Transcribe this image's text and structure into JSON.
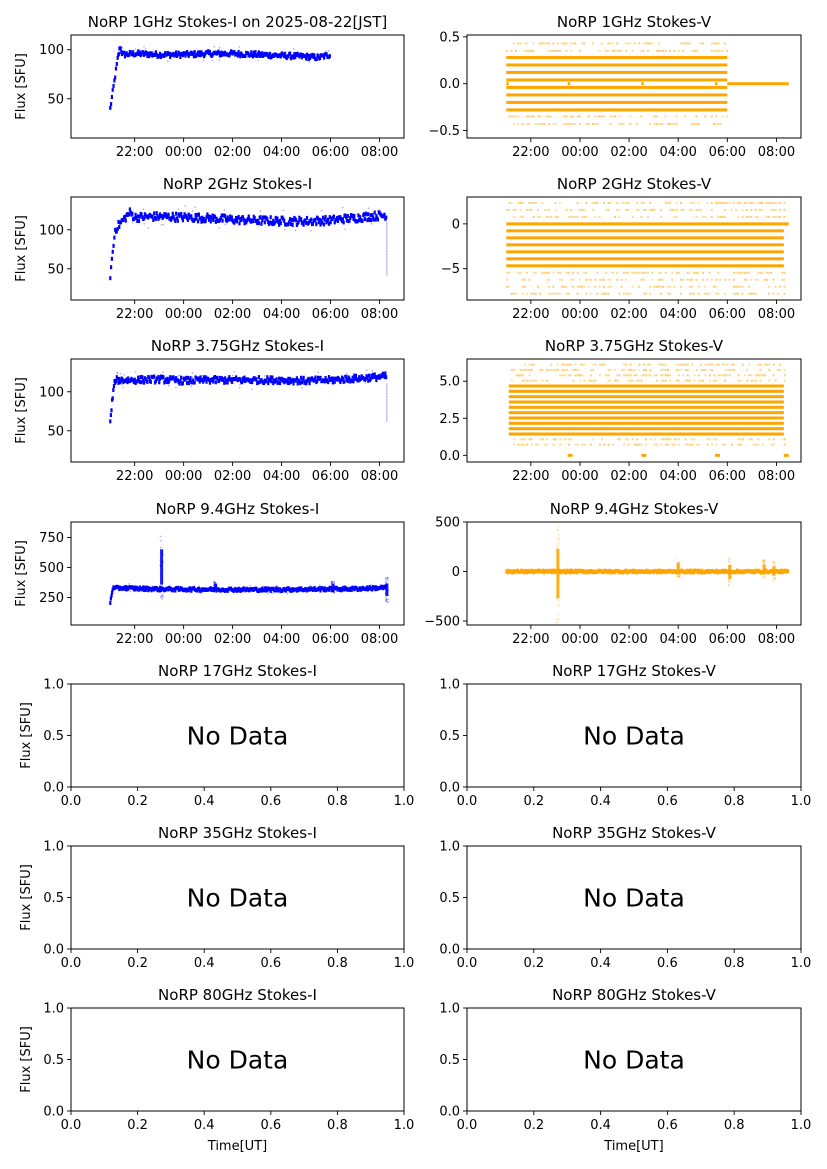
{
  "figure": {
    "ylabel": "Flux [SFU]",
    "xlabel": "Time[UT]",
    "no_data_text": "No Data",
    "colors": {
      "stokes_i": "#0000ff",
      "stokes_v": "#ffa500",
      "axes": "#000000"
    }
  },
  "chart_data": [
    {
      "id": "1ghz-i",
      "type": "scatter",
      "title": "NoRP 1GHz Stokes-I on 2025-08-22[JST]",
      "ylabel": "Flux [SFU]",
      "xlabel": "",
      "has_data": true,
      "color": "#0000ff",
      "xlim_hours": [
        19.4,
        33.0
      ],
      "ylim": [
        10,
        115
      ],
      "xticks": [
        {
          "v": 22,
          "label": "22:00"
        },
        {
          "v": 24,
          "label": "00:00"
        },
        {
          "v": 26,
          "label": "02:00"
        },
        {
          "v": 28,
          "label": "04:00"
        },
        {
          "v": 30,
          "label": "06:00"
        },
        {
          "v": 32,
          "label": "08:00"
        }
      ],
      "yticks": [
        {
          "v": 50,
          "label": "50"
        },
        {
          "v": 100,
          "label": "100"
        }
      ],
      "series": [
        {
          "name": "Stokes-I",
          "x": [
            21.0,
            21.3,
            21.4,
            21.5,
            22,
            23,
            24,
            25,
            26,
            27,
            28,
            29,
            29.5,
            30.0
          ],
          "y": [
            40,
            90,
            103,
            95,
            96,
            95,
            95,
            96,
            96,
            95,
            94,
            93,
            92,
            95
          ],
          "spread": 2.5
        }
      ]
    },
    {
      "id": "1ghz-v",
      "type": "scatter",
      "title": "NoRP 1GHz Stokes-V",
      "ylabel": "",
      "xlabel": "",
      "has_data": true,
      "color": "#ffa500",
      "xlim_hours": [
        19.4,
        33.0
      ],
      "ylim": [
        -0.58,
        0.52
      ],
      "xticks": [
        {
          "v": 22,
          "label": "22:00"
        },
        {
          "v": 24,
          "label": "00:00"
        },
        {
          "v": 26,
          "label": "02:00"
        },
        {
          "v": 28,
          "label": "04:00"
        },
        {
          "v": 30,
          "label": "06:00"
        },
        {
          "v": 32,
          "label": "08:00"
        }
      ],
      "yticks": [
        {
          "v": -0.5,
          "label": "−0.5"
        },
        {
          "v": 0,
          "label": "0.0"
        },
        {
          "v": 0.5,
          "label": "0.5"
        }
      ],
      "quantized_bands": {
        "x_range": [
          21.0,
          30.0
        ],
        "step": 0.078,
        "solid_levels": [
          -0.28,
          -0.2,
          -0.12,
          -0.04,
          0.04,
          0.12,
          0.2,
          0.28
        ],
        "sparse_levels": [
          -0.43,
          -0.35,
          0.35,
          0.43
        ]
      },
      "segments": [
        {
          "x": [
            30.0,
            32.5
          ],
          "y": 0.0
        },
        {
          "x": [
            21.0,
            21.1
          ],
          "y": 0.0
        },
        {
          "x": [
            23.5,
            23.6
          ],
          "y": 0.0
        },
        {
          "x": [
            26.5,
            26.6
          ],
          "y": 0.0
        },
        {
          "x": [
            29.5,
            29.6
          ],
          "y": 0.0
        }
      ]
    },
    {
      "id": "2ghz-i",
      "type": "scatter",
      "title": "NoRP 2GHz Stokes-I",
      "ylabel": "Flux [SFU]",
      "xlabel": "",
      "has_data": true,
      "color": "#0000ff",
      "xlim_hours": [
        19.4,
        33.0
      ],
      "ylim": [
        10,
        142
      ],
      "xticks": [
        {
          "v": 22,
          "label": "22:00"
        },
        {
          "v": 24,
          "label": "00:00"
        },
        {
          "v": 26,
          "label": "02:00"
        },
        {
          "v": 28,
          "label": "04:00"
        },
        {
          "v": 30,
          "label": "06:00"
        },
        {
          "v": 32,
          "label": "08:00"
        }
      ],
      "yticks": [
        {
          "v": 50,
          "label": "50"
        },
        {
          "v": 100,
          "label": "100"
        }
      ],
      "series": [
        {
          "name": "Stokes-I",
          "x": [
            21.0,
            21.2,
            21.4,
            21.8,
            22,
            23,
            24,
            25,
            26,
            27,
            28,
            29,
            30,
            30.5,
            31,
            31.5,
            32,
            32.3
          ],
          "y": [
            42,
            100,
            108,
            122,
            116,
            117,
            116,
            115,
            113,
            112,
            111,
            111,
            112,
            114,
            115,
            117,
            118,
            119
          ],
          "spread": 5
        }
      ],
      "dropout": {
        "x": 32.3,
        "y_min": 42
      }
    },
    {
      "id": "2ghz-v",
      "type": "scatter",
      "title": "NoRP 2GHz Stokes-V",
      "ylabel": "",
      "xlabel": "",
      "has_data": true,
      "color": "#ffa500",
      "xlim_hours": [
        19.4,
        33.0
      ],
      "ylim": [
        -8.5,
        3.0
      ],
      "xticks": [
        {
          "v": 22,
          "label": "22:00"
        },
        {
          "v": 24,
          "label": "00:00"
        },
        {
          "v": 26,
          "label": "02:00"
        },
        {
          "v": 28,
          "label": "04:00"
        },
        {
          "v": 30,
          "label": "06:00"
        },
        {
          "v": 32,
          "label": "08:00"
        }
      ],
      "yticks": [
        {
          "v": -5,
          "label": "−5"
        },
        {
          "v": 0,
          "label": "0"
        }
      ],
      "quantized_bands": {
        "x_range": [
          21.0,
          32.3
        ],
        "step": 0.78,
        "solid_levels": [
          0.0,
          -0.78,
          -1.56,
          -2.34,
          -3.12,
          -3.9,
          -4.68
        ],
        "sparse_levels": [
          2.34,
          1.56,
          0.78,
          -5.46,
          -6.24,
          -7.02,
          -7.8
        ]
      },
      "segments": [
        {
          "x": [
            32.3,
            32.5
          ],
          "y": 0.0
        }
      ]
    },
    {
      "id": "375ghz-i",
      "type": "scatter",
      "title": "NoRP 3.75GHz Stokes-I",
      "ylabel": "Flux [SFU]",
      "xlabel": "",
      "has_data": true,
      "color": "#0000ff",
      "xlim_hours": [
        19.4,
        33.0
      ],
      "ylim": [
        10,
        142
      ],
      "xticks": [
        {
          "v": 22,
          "label": "22:00"
        },
        {
          "v": 24,
          "label": "00:00"
        },
        {
          "v": 26,
          "label": "02:00"
        },
        {
          "v": 28,
          "label": "04:00"
        },
        {
          "v": 30,
          "label": "06:00"
        },
        {
          "v": 32,
          "label": "08:00"
        }
      ],
      "yticks": [
        {
          "v": 50,
          "label": "50"
        },
        {
          "v": 100,
          "label": "100"
        }
      ],
      "series": [
        {
          "name": "Stokes-I",
          "x": [
            21.0,
            21.1,
            21.2,
            22,
            23,
            24,
            25,
            26,
            27,
            28,
            29,
            30,
            30.5,
            31,
            31.5,
            32,
            32.3
          ],
          "y": [
            60,
            95,
            115,
            115,
            116,
            114,
            115,
            115,
            115,
            115,
            114,
            115,
            116,
            117,
            118,
            119,
            120
          ],
          "spread": 4
        }
      ],
      "dropout": {
        "x": 32.3,
        "y_min": 62
      }
    },
    {
      "id": "375ghz-v",
      "type": "scatter",
      "title": "NoRP 3.75GHz Stokes-V",
      "ylabel": "",
      "xlabel": "",
      "has_data": true,
      "color": "#ffa500",
      "xlim_hours": [
        19.4,
        33.0
      ],
      "ylim": [
        -0.45,
        6.5
      ],
      "xticks": [
        {
          "v": 22,
          "label": "22:00"
        },
        {
          "v": 24,
          "label": "00:00"
        },
        {
          "v": 26,
          "label": "02:00"
        },
        {
          "v": 28,
          "label": "04:00"
        },
        {
          "v": 30,
          "label": "06:00"
        },
        {
          "v": 32,
          "label": "08:00"
        }
      ],
      "yticks": [
        {
          "v": 0,
          "label": "0.0"
        },
        {
          "v": 2.5,
          "label": "2.5"
        },
        {
          "v": 5,
          "label": "5.0"
        }
      ],
      "quantized_bands": {
        "x_range": [
          21.1,
          32.3
        ],
        "step": 0.36,
        "solid_levels": [
          1.44,
          1.8,
          2.16,
          2.52,
          2.88,
          3.24,
          3.6,
          3.96,
          4.32,
          4.68
        ],
        "sparse_levels": [
          0.72,
          1.08,
          5.04,
          5.4,
          5.76,
          6.12
        ]
      },
      "segments": [
        {
          "x": [
            23.5,
            23.7
          ],
          "y": 0.0
        },
        {
          "x": [
            26.5,
            26.7
          ],
          "y": 0.0
        },
        {
          "x": [
            29.5,
            29.7
          ],
          "y": 0.0
        },
        {
          "x": [
            32.3,
            32.5
          ],
          "y": 0.0
        }
      ]
    },
    {
      "id": "94ghz-i",
      "type": "scatter",
      "title": "NoRP 9.4GHz Stokes-I",
      "ylabel": "Flux [SFU]",
      "xlabel": "",
      "has_data": true,
      "color": "#0000ff",
      "xlim_hours": [
        19.4,
        33.0
      ],
      "ylim": [
        20,
        880
      ],
      "xticks": [
        {
          "v": 22,
          "label": "22:00"
        },
        {
          "v": 24,
          "label": "00:00"
        },
        {
          "v": 26,
          "label": "02:00"
        },
        {
          "v": 28,
          "label": "04:00"
        },
        {
          "v": 30,
          "label": "06:00"
        },
        {
          "v": 32,
          "label": "08:00"
        }
      ],
      "yticks": [
        {
          "v": 250,
          "label": "250"
        },
        {
          "v": 500,
          "label": "500"
        },
        {
          "v": 750,
          "label": "750"
        }
      ],
      "series": [
        {
          "name": "Stokes-I",
          "x": [
            21.0,
            21.1,
            21.5,
            22,
            23,
            24,
            25,
            26,
            27,
            28,
            29,
            30,
            31,
            32,
            32.3
          ],
          "y": [
            210,
            325,
            330,
            325,
            320,
            318,
            317,
            316,
            315,
            316,
            318,
            320,
            322,
            330,
            335
          ],
          "spread": 12
        }
      ],
      "spikes": [
        {
          "x": 23.1,
          "y_min": 210,
          "y_max": 800
        },
        {
          "x": 30.1,
          "y_min": 290,
          "y_max": 390
        },
        {
          "x": 25.3,
          "y_min": 300,
          "y_max": 380
        },
        {
          "x": 32.3,
          "y_min": 210,
          "y_max": 420
        }
      ]
    },
    {
      "id": "94ghz-v",
      "type": "scatter",
      "title": "NoRP 9.4GHz Stokes-V",
      "ylabel": "",
      "xlabel": "",
      "has_data": true,
      "color": "#ffa500",
      "xlim_hours": [
        19.4,
        33.0
      ],
      "ylim": [
        -540,
        500
      ],
      "xticks": [
        {
          "v": 22,
          "label": "22:00"
        },
        {
          "v": 24,
          "label": "00:00"
        },
        {
          "v": 26,
          "label": "02:00"
        },
        {
          "v": 28,
          "label": "04:00"
        },
        {
          "v": 30,
          "label": "06:00"
        },
        {
          "v": 32,
          "label": "08:00"
        }
      ],
      "yticks": [
        {
          "v": -500,
          "label": "−500"
        },
        {
          "v": 0,
          "label": "0"
        },
        {
          "v": 500,
          "label": "500"
        }
      ],
      "series": [
        {
          "name": "Stokes-V",
          "x": [
            21.0,
            32.5
          ],
          "y": [
            0,
            0
          ],
          "spread": 10
        }
      ],
      "spikes": [
        {
          "x": 23.1,
          "y_min": -520,
          "y_max": 480
        },
        {
          "x": 30.1,
          "y_min": -150,
          "y_max": 140
        },
        {
          "x": 31.5,
          "y_min": -80,
          "y_max": 120
        },
        {
          "x": 31.9,
          "y_min": -90,
          "y_max": 100
        },
        {
          "x": 28.0,
          "y_min": -60,
          "y_max": 140
        }
      ]
    },
    {
      "id": "17ghz-i",
      "type": "scatter",
      "title": "NoRP 17GHz Stokes-I",
      "ylabel": "Flux [SFU]",
      "xlabel": "",
      "has_data": false,
      "xlim": [
        0,
        1
      ],
      "ylim": [
        0,
        1
      ],
      "xticks": [
        {
          "v": 0,
          "label": "0.0"
        },
        {
          "v": 0.2,
          "label": "0.2"
        },
        {
          "v": 0.4,
          "label": "0.4"
        },
        {
          "v": 0.6,
          "label": "0.6"
        },
        {
          "v": 0.8,
          "label": "0.8"
        },
        {
          "v": 1,
          "label": "1.0"
        }
      ],
      "yticks": [
        {
          "v": 0,
          "label": "0.0"
        },
        {
          "v": 0.5,
          "label": "0.5"
        },
        {
          "v": 1,
          "label": "1.0"
        }
      ],
      "annotation": "No Data"
    },
    {
      "id": "17ghz-v",
      "type": "scatter",
      "title": "NoRP 17GHz Stokes-V",
      "ylabel": "",
      "xlabel": "",
      "has_data": false,
      "xlim": [
        0,
        1
      ],
      "ylim": [
        0,
        1
      ],
      "xticks": [
        {
          "v": 0,
          "label": "0.0"
        },
        {
          "v": 0.2,
          "label": "0.2"
        },
        {
          "v": 0.4,
          "label": "0.4"
        },
        {
          "v": 0.6,
          "label": "0.6"
        },
        {
          "v": 0.8,
          "label": "0.8"
        },
        {
          "v": 1,
          "label": "1.0"
        }
      ],
      "yticks": [
        {
          "v": 0,
          "label": "0.0"
        },
        {
          "v": 0.5,
          "label": "0.5"
        },
        {
          "v": 1,
          "label": "1.0"
        }
      ],
      "annotation": "No Data"
    },
    {
      "id": "35ghz-i",
      "type": "scatter",
      "title": "NoRP 35GHz Stokes-I",
      "ylabel": "Flux [SFU]",
      "xlabel": "",
      "has_data": false,
      "xlim": [
        0,
        1
      ],
      "ylim": [
        0,
        1
      ],
      "xticks": [
        {
          "v": 0,
          "label": "0.0"
        },
        {
          "v": 0.2,
          "label": "0.2"
        },
        {
          "v": 0.4,
          "label": "0.4"
        },
        {
          "v": 0.6,
          "label": "0.6"
        },
        {
          "v": 0.8,
          "label": "0.8"
        },
        {
          "v": 1,
          "label": "1.0"
        }
      ],
      "yticks": [
        {
          "v": 0,
          "label": "0.0"
        },
        {
          "v": 0.5,
          "label": "0.5"
        },
        {
          "v": 1,
          "label": "1.0"
        }
      ],
      "annotation": "No Data"
    },
    {
      "id": "35ghz-v",
      "type": "scatter",
      "title": "NoRP 35GHz Stokes-V",
      "ylabel": "",
      "xlabel": "",
      "has_data": false,
      "xlim": [
        0,
        1
      ],
      "ylim": [
        0,
        1
      ],
      "xticks": [
        {
          "v": 0,
          "label": "0.0"
        },
        {
          "v": 0.2,
          "label": "0.2"
        },
        {
          "v": 0.4,
          "label": "0.4"
        },
        {
          "v": 0.6,
          "label": "0.6"
        },
        {
          "v": 0.8,
          "label": "0.8"
        },
        {
          "v": 1,
          "label": "1.0"
        }
      ],
      "yticks": [
        {
          "v": 0,
          "label": "0.0"
        },
        {
          "v": 0.5,
          "label": "0.5"
        },
        {
          "v": 1,
          "label": "1.0"
        }
      ],
      "annotation": "No Data"
    },
    {
      "id": "80ghz-i",
      "type": "scatter",
      "title": "NoRP 80GHz Stokes-I",
      "ylabel": "Flux [SFU]",
      "xlabel": "Time[UT]",
      "has_data": false,
      "xlim": [
        0,
        1
      ],
      "ylim": [
        0,
        1
      ],
      "xticks": [
        {
          "v": 0,
          "label": "0.0"
        },
        {
          "v": 0.2,
          "label": "0.2"
        },
        {
          "v": 0.4,
          "label": "0.4"
        },
        {
          "v": 0.6,
          "label": "0.6"
        },
        {
          "v": 0.8,
          "label": "0.8"
        },
        {
          "v": 1,
          "label": "1.0"
        }
      ],
      "yticks": [
        {
          "v": 0,
          "label": "0.0"
        },
        {
          "v": 0.5,
          "label": "0.5"
        },
        {
          "v": 1,
          "label": "1.0"
        }
      ],
      "annotation": "No Data"
    },
    {
      "id": "80ghz-v",
      "type": "scatter",
      "title": "NoRP 80GHz Stokes-V",
      "ylabel": "",
      "xlabel": "Time[UT]",
      "has_data": false,
      "xlim": [
        0,
        1
      ],
      "ylim": [
        0,
        1
      ],
      "xticks": [
        {
          "v": 0,
          "label": "0.0"
        },
        {
          "v": 0.2,
          "label": "0.2"
        },
        {
          "v": 0.4,
          "label": "0.4"
        },
        {
          "v": 0.6,
          "label": "0.6"
        },
        {
          "v": 0.8,
          "label": "0.8"
        },
        {
          "v": 1,
          "label": "1.0"
        }
      ],
      "yticks": [
        {
          "v": 0,
          "label": "0.0"
        },
        {
          "v": 0.5,
          "label": "0.5"
        },
        {
          "v": 1,
          "label": "1.0"
        }
      ],
      "annotation": "No Data"
    }
  ]
}
